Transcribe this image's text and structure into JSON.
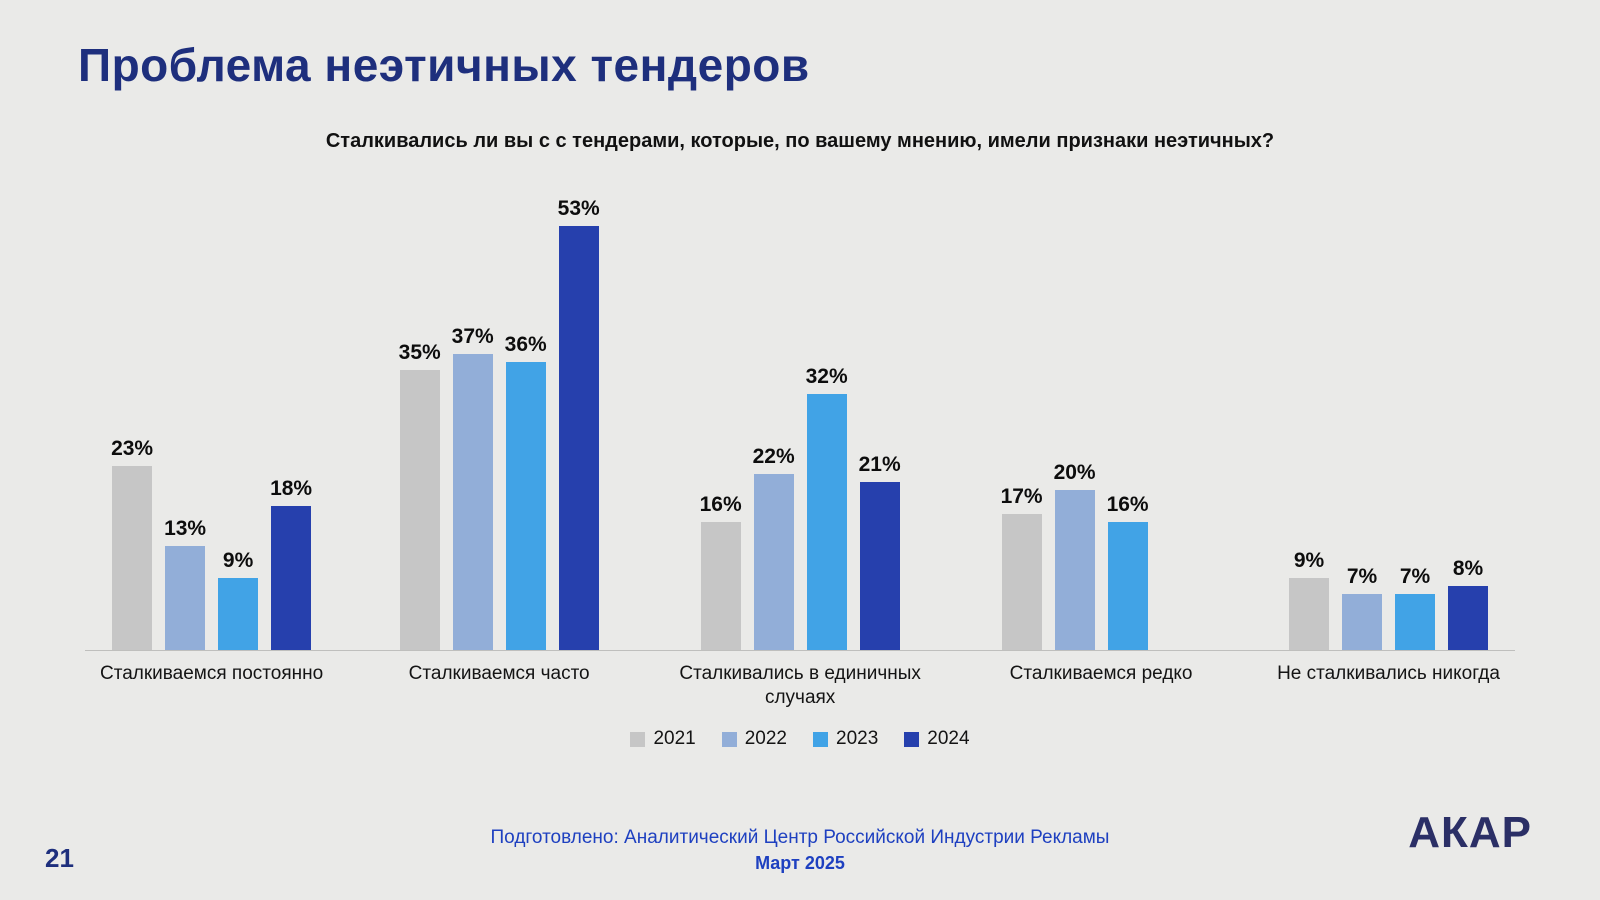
{
  "slide": {
    "title": "Проблема неэтичных тендеров",
    "page_number": "21",
    "footer_line1": "Подготовлено: Аналитический Центр Российской Индустрии Рекламы",
    "footer_line2": "Март 2025",
    "logo": "АКАР"
  },
  "chart_data": {
    "type": "bar",
    "title": "Сталкивались ли вы с с тендерами, которые, по вашему мнению, имели признаки неэтичных?",
    "categories": [
      "Сталкиваемся постоянно",
      "Сталкиваемся часто",
      "Сталкивались в единичных случаях",
      "Сталкиваемся редко",
      "Не сталкивались никогда"
    ],
    "series": [
      {
        "name": "2021",
        "color": "#c6c6c6",
        "values": [
          23,
          35,
          16,
          17,
          9
        ]
      },
      {
        "name": "2022",
        "color": "#92aed8",
        "values": [
          13,
          37,
          22,
          20,
          7
        ]
      },
      {
        "name": "2023",
        "color": "#41a3e6",
        "values": [
          9,
          36,
          32,
          16,
          7
        ]
      },
      {
        "name": "2024",
        "color": "#2640ad",
        "values": [
          18,
          53,
          21,
          null,
          8
        ]
      }
    ],
    "value_suffix": "%",
    "ylim": [
      0,
      59
    ],
    "grid": false,
    "legend_position": "bottom"
  }
}
